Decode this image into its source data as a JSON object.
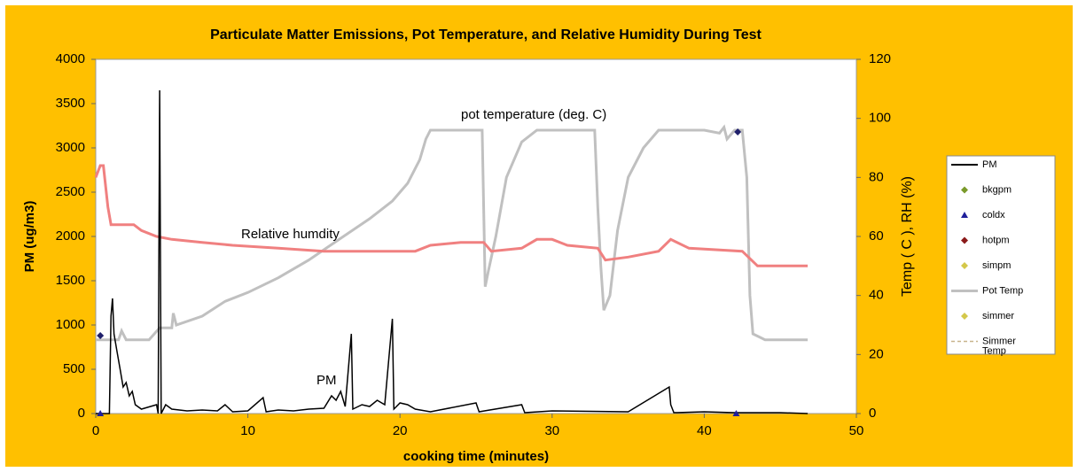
{
  "chart_data": {
    "type": "line",
    "title": "Particulate Matter Emissions, Pot Temperature, and Relative Humidity During Test",
    "xlabel": "cooking time (minutes)",
    "ylabel": "PM (ug/m3)",
    "y2label": "Temp ( C ), RH (%)",
    "xlim": [
      0,
      50
    ],
    "xticks": [
      0,
      10,
      20,
      30,
      40,
      50
    ],
    "ylim": [
      0,
      4000
    ],
    "yticks": [
      0,
      500,
      1000,
      1500,
      2000,
      2500,
      3000,
      3500,
      4000
    ],
    "y2lim": [
      0,
      120
    ],
    "y2ticks": [
      0,
      20,
      40,
      60,
      80,
      100,
      120
    ],
    "annotations": [
      "pot temperature (deg. C)",
      "Relative humdity",
      "PM"
    ],
    "series": [
      {
        "color": "#000000",
        "x": [
          0,
          0.9,
          1.0,
          1.1,
          1.2,
          1.4,
          1.6,
          1.8,
          2.0,
          2.2,
          2.4,
          2.6,
          3.0,
          4.0,
          4.1,
          4.2,
          4.3,
          4.6,
          5.0,
          6,
          7,
          8,
          8.5,
          9,
          10,
          11,
          11.2,
          12,
          13,
          14,
          15,
          15.5,
          15.8,
          16.1,
          16.4,
          16.8,
          16.9,
          17.5,
          18,
          18.5,
          19,
          19.5,
          19.6,
          20,
          20.5,
          21,
          22,
          25,
          25.2,
          28,
          28.2,
          30,
          35,
          37.7,
          37.8,
          38,
          40,
          42,
          45,
          46.8
        ],
        "values": [
          0,
          0,
          1100,
          1300,
          900,
          700,
          500,
          300,
          350,
          200,
          250,
          100,
          50,
          100,
          0,
          3650,
          0,
          100,
          50,
          30,
          40,
          30,
          100,
          20,
          30,
          180,
          20,
          40,
          30,
          50,
          60,
          200,
          150,
          250,
          80,
          900,
          50,
          100,
          80,
          150,
          100,
          1070,
          50,
          120,
          100,
          50,
          20,
          120,
          20,
          100,
          10,
          30,
          20,
          300,
          100,
          10,
          20,
          10,
          10,
          0
        ]
      },
      {
        "color": "#c0c0c0",
        "axis": "y2",
        "x": [
          0,
          1.5,
          1.7,
          2,
          3.5,
          4.2,
          5,
          5.1,
          5.3,
          7,
          8.5,
          10,
          12,
          14,
          16,
          18,
          19.5,
          20.5,
          21.3,
          21.7,
          22,
          25,
          25.4,
          25.6,
          25.8,
          26.3,
          27,
          28,
          29,
          32.8,
          33,
          33.2,
          33.4,
          33.8,
          34.3,
          35,
          36,
          37,
          40,
          41,
          41.3,
          41.5,
          42,
          42.5,
          42.8,
          43,
          43.2,
          44,
          46.8
        ],
        "values": [
          25,
          25,
          28,
          25,
          25,
          29,
          29,
          34,
          30,
          33,
          38,
          41,
          46,
          52,
          59,
          66,
          72,
          78,
          86,
          93,
          96,
          96,
          96,
          43,
          48,
          60,
          80,
          92,
          96,
          96,
          70,
          50,
          35,
          40,
          62,
          80,
          90,
          96,
          96,
          95,
          97,
          93,
          96,
          96,
          80,
          40,
          27,
          25,
          25
        ]
      },
      {
        "color": "#f08080",
        "axis": "y2",
        "x": [
          0,
          0.3,
          0.5,
          0.8,
          1,
          2.5,
          3,
          4,
          5,
          7,
          9,
          12,
          15,
          20,
          21,
          22,
          24,
          25.5,
          26,
          28,
          29,
          30,
          31,
          33,
          33.5,
          35,
          37,
          37.8,
          39,
          42.5,
          43.5,
          46.8
        ],
        "values": [
          80,
          84,
          84,
          70,
          64,
          64,
          62,
          60,
          59,
          58,
          57,
          56,
          55,
          55,
          55,
          57,
          58,
          58,
          55,
          56,
          59,
          59,
          57,
          56,
          52,
          53,
          55,
          59,
          56,
          55,
          50,
          50
        ]
      }
    ],
    "points": [
      {
        "x": 0.3,
        "value": 880,
        "shape": "diamond",
        "color": "#1f1f6b"
      },
      {
        "x": 42.2,
        "value": 3180,
        "shape": "diamond",
        "color": "#1f1f6b"
      },
      {
        "x": 0.3,
        "value": 0,
        "shape": "triangle",
        "color": "#1f1f9b"
      },
      {
        "x": 42.1,
        "value": 0,
        "shape": "triangle",
        "color": "#1f1f9b"
      }
    ],
    "legend": [
      {
        "label": "PM",
        "symbol": "line",
        "color": "#000000"
      },
      {
        "label": "bkgpm",
        "symbol": "diamond",
        "color": "#7a9a2a"
      },
      {
        "label": "coldx",
        "symbol": "triangle",
        "color": "#1f1f9b"
      },
      {
        "label": "hotpm",
        "symbol": "diamond",
        "color": "#8b1a1a"
      },
      {
        "label": "simpm",
        "symbol": "diamond",
        "color": "#d4c84a"
      },
      {
        "label": "Pot Temp",
        "symbol": "line",
        "color": "#c0c0c0"
      },
      {
        "label": "simmer",
        "symbol": "diamond",
        "color": "#d4c84a"
      },
      {
        "label": "Simmer Temp",
        "symbol": "dash",
        "color": "#c8b48c"
      }
    ]
  }
}
